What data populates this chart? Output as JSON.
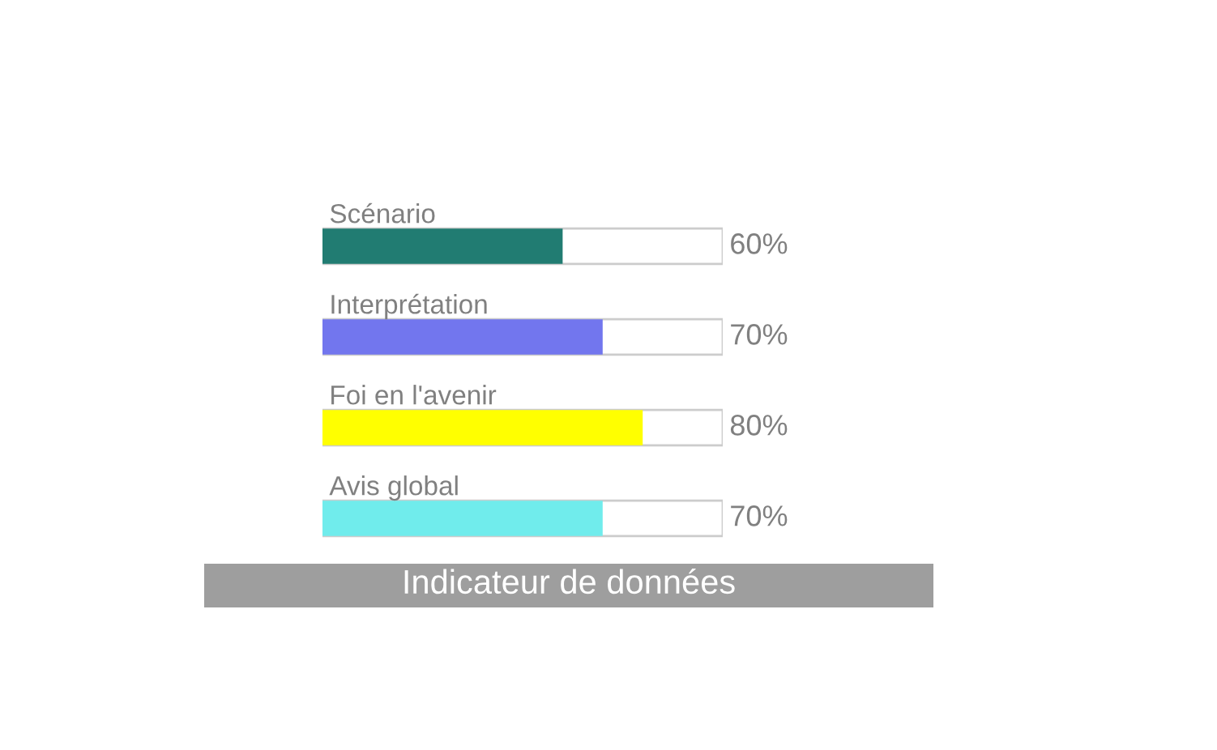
{
  "chart_data": {
    "type": "bar",
    "orientation": "horizontal",
    "title": "Indicateur de données",
    "categories": [
      "Scénario",
      "Interprétation",
      "Foi en l'avenir",
      "Avis global"
    ],
    "values": [
      60,
      70,
      80,
      70
    ],
    "colors": [
      "#217c72",
      "#7276ee",
      "#ffff00",
      "#70ecec"
    ],
    "value_labels": [
      "60%",
      "70%",
      "80%",
      "70%"
    ],
    "xlim": [
      0,
      100
    ],
    "tick_labels": false
  }
}
